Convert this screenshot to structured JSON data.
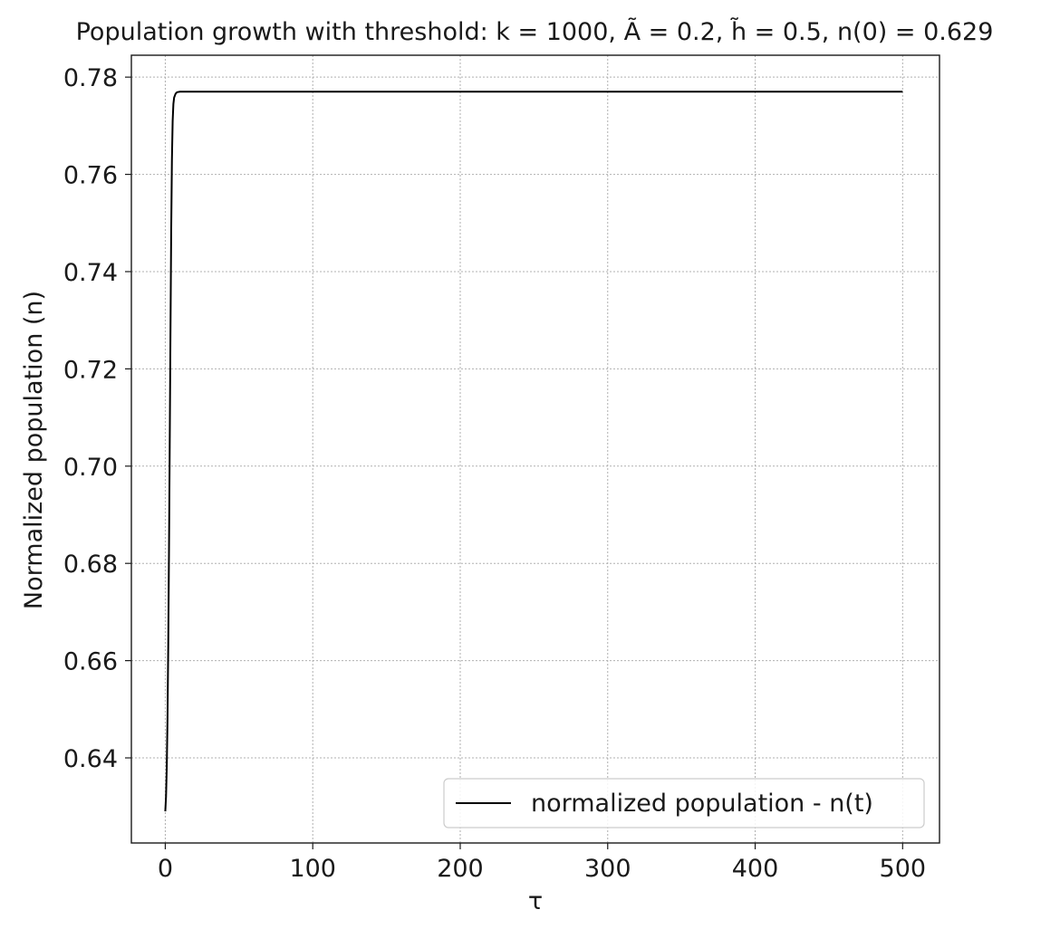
{
  "chart_data": {
    "type": "line",
    "title": "Population growth with threshold: k = 1000, Ã = 0.2, h̃ = 0.5, n(0) = 0.629",
    "xlabel": "τ",
    "ylabel": "Normalized population (n)",
    "xlim": [
      -23,
      525
    ],
    "ylim": [
      0.6225,
      0.7845
    ],
    "xticks": [
      0,
      100,
      200,
      300,
      400,
      500
    ],
    "xtick_labels": [
      "0",
      "100",
      "200",
      "300",
      "400",
      "500"
    ],
    "yticks": [
      0.64,
      0.66,
      0.68,
      0.7,
      0.72,
      0.74,
      0.76,
      0.78
    ],
    "ytick_labels": [
      "0.64",
      "0.66",
      "0.68",
      "0.70",
      "0.72",
      "0.74",
      "0.76",
      "0.78"
    ],
    "grid": true,
    "legend_position": "lower-right",
    "series": [
      {
        "name": "normalized population - n(t)",
        "color": "#000000",
        "x": [
          0,
          0.5,
          1,
          1.5,
          2,
          2.5,
          3,
          3.5,
          4,
          4.5,
          5,
          5.5,
          6,
          7,
          8,
          10,
          15,
          50,
          100,
          200,
          300,
          400,
          500
        ],
        "y": [
          0.629,
          0.632,
          0.638,
          0.648,
          0.663,
          0.682,
          0.704,
          0.727,
          0.748,
          0.763,
          0.771,
          0.7745,
          0.7758,
          0.7766,
          0.7769,
          0.777,
          0.777,
          0.777,
          0.777,
          0.777,
          0.777,
          0.777,
          0.777
        ]
      }
    ]
  }
}
